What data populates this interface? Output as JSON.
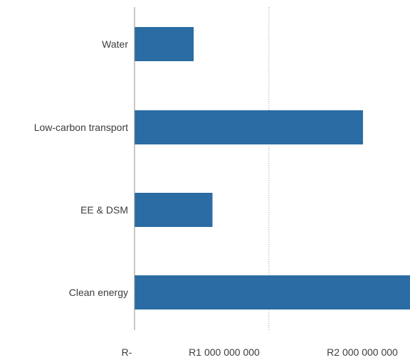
{
  "chart_data": {
    "type": "bar",
    "orientation": "horizontal",
    "categories": [
      "Water",
      "Low-carbon transport",
      "EE & DSM",
      "Clean energy"
    ],
    "values": [
      440000000,
      1700000000,
      580000000,
      2050000000
    ],
    "xlim": [
      0,
      2050000000
    ],
    "xticks": [
      0,
      1000000000,
      2000000000
    ],
    "xtick_labels": [
      "R-",
      "R1 000 000 000",
      "R2 000 000 000"
    ],
    "title": "",
    "xlabel": "",
    "ylabel": "",
    "grid": "vertical dotted line at R1 000 000 000",
    "legend": "none",
    "bar_color": "#2a6ca3",
    "axis_color": "#8c8c8c"
  }
}
